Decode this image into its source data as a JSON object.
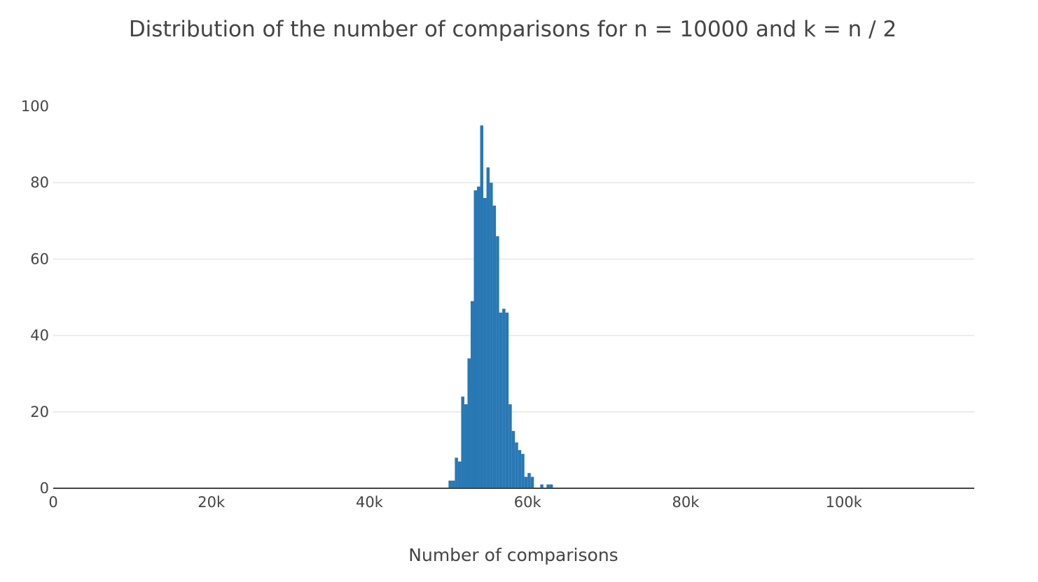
{
  "chart_data": {
    "type": "bar",
    "title": "Distribution of the number of comparisons for n = 10000 and k = n / 2",
    "xlabel": "Number of comparisons",
    "ylabel": "",
    "xlim": [
      0,
      116500
    ],
    "ylim": [
      0,
      100
    ],
    "x_ticks": [
      {
        "value": 0,
        "label": "0"
      },
      {
        "value": 20000,
        "label": "20k"
      },
      {
        "value": 40000,
        "label": "40k"
      },
      {
        "value": 60000,
        "label": "60k"
      },
      {
        "value": 80000,
        "label": "80k"
      },
      {
        "value": 100000,
        "label": "100k"
      }
    ],
    "y_ticks": [
      {
        "value": 0,
        "label": "0"
      },
      {
        "value": 20,
        "label": "20"
      },
      {
        "value": 40,
        "label": "40"
      },
      {
        "value": 60,
        "label": "60"
      },
      {
        "value": 80,
        "label": "80"
      },
      {
        "value": 100,
        "label": "100"
      }
    ],
    "bin_width": 400,
    "bin_start": [
      50000,
      50400,
      50800,
      51200,
      51600,
      52000,
      52400,
      52800,
      53200,
      53600,
      54000,
      54400,
      54800,
      55200,
      55600,
      56000,
      56400,
      56800,
      57200,
      57600,
      58000,
      58400,
      58800,
      59200,
      59600,
      60000,
      60400,
      60800,
      61200,
      61600,
      62000,
      62400,
      62800,
      63200,
      63600,
      64000,
      64400,
      64800,
      65200
    ],
    "counts": [
      2,
      2,
      8,
      7,
      24,
      22,
      34,
      49,
      78,
      79,
      95,
      76,
      84,
      80,
      74,
      66,
      46,
      47,
      46,
      22,
      15,
      12,
      10,
      9,
      3,
      4,
      3,
      0,
      0,
      1,
      0,
      1,
      1,
      0,
      0,
      0,
      0,
      0,
      0
    ],
    "bar_color": "#2878b4",
    "grid": true,
    "legend": "none"
  }
}
